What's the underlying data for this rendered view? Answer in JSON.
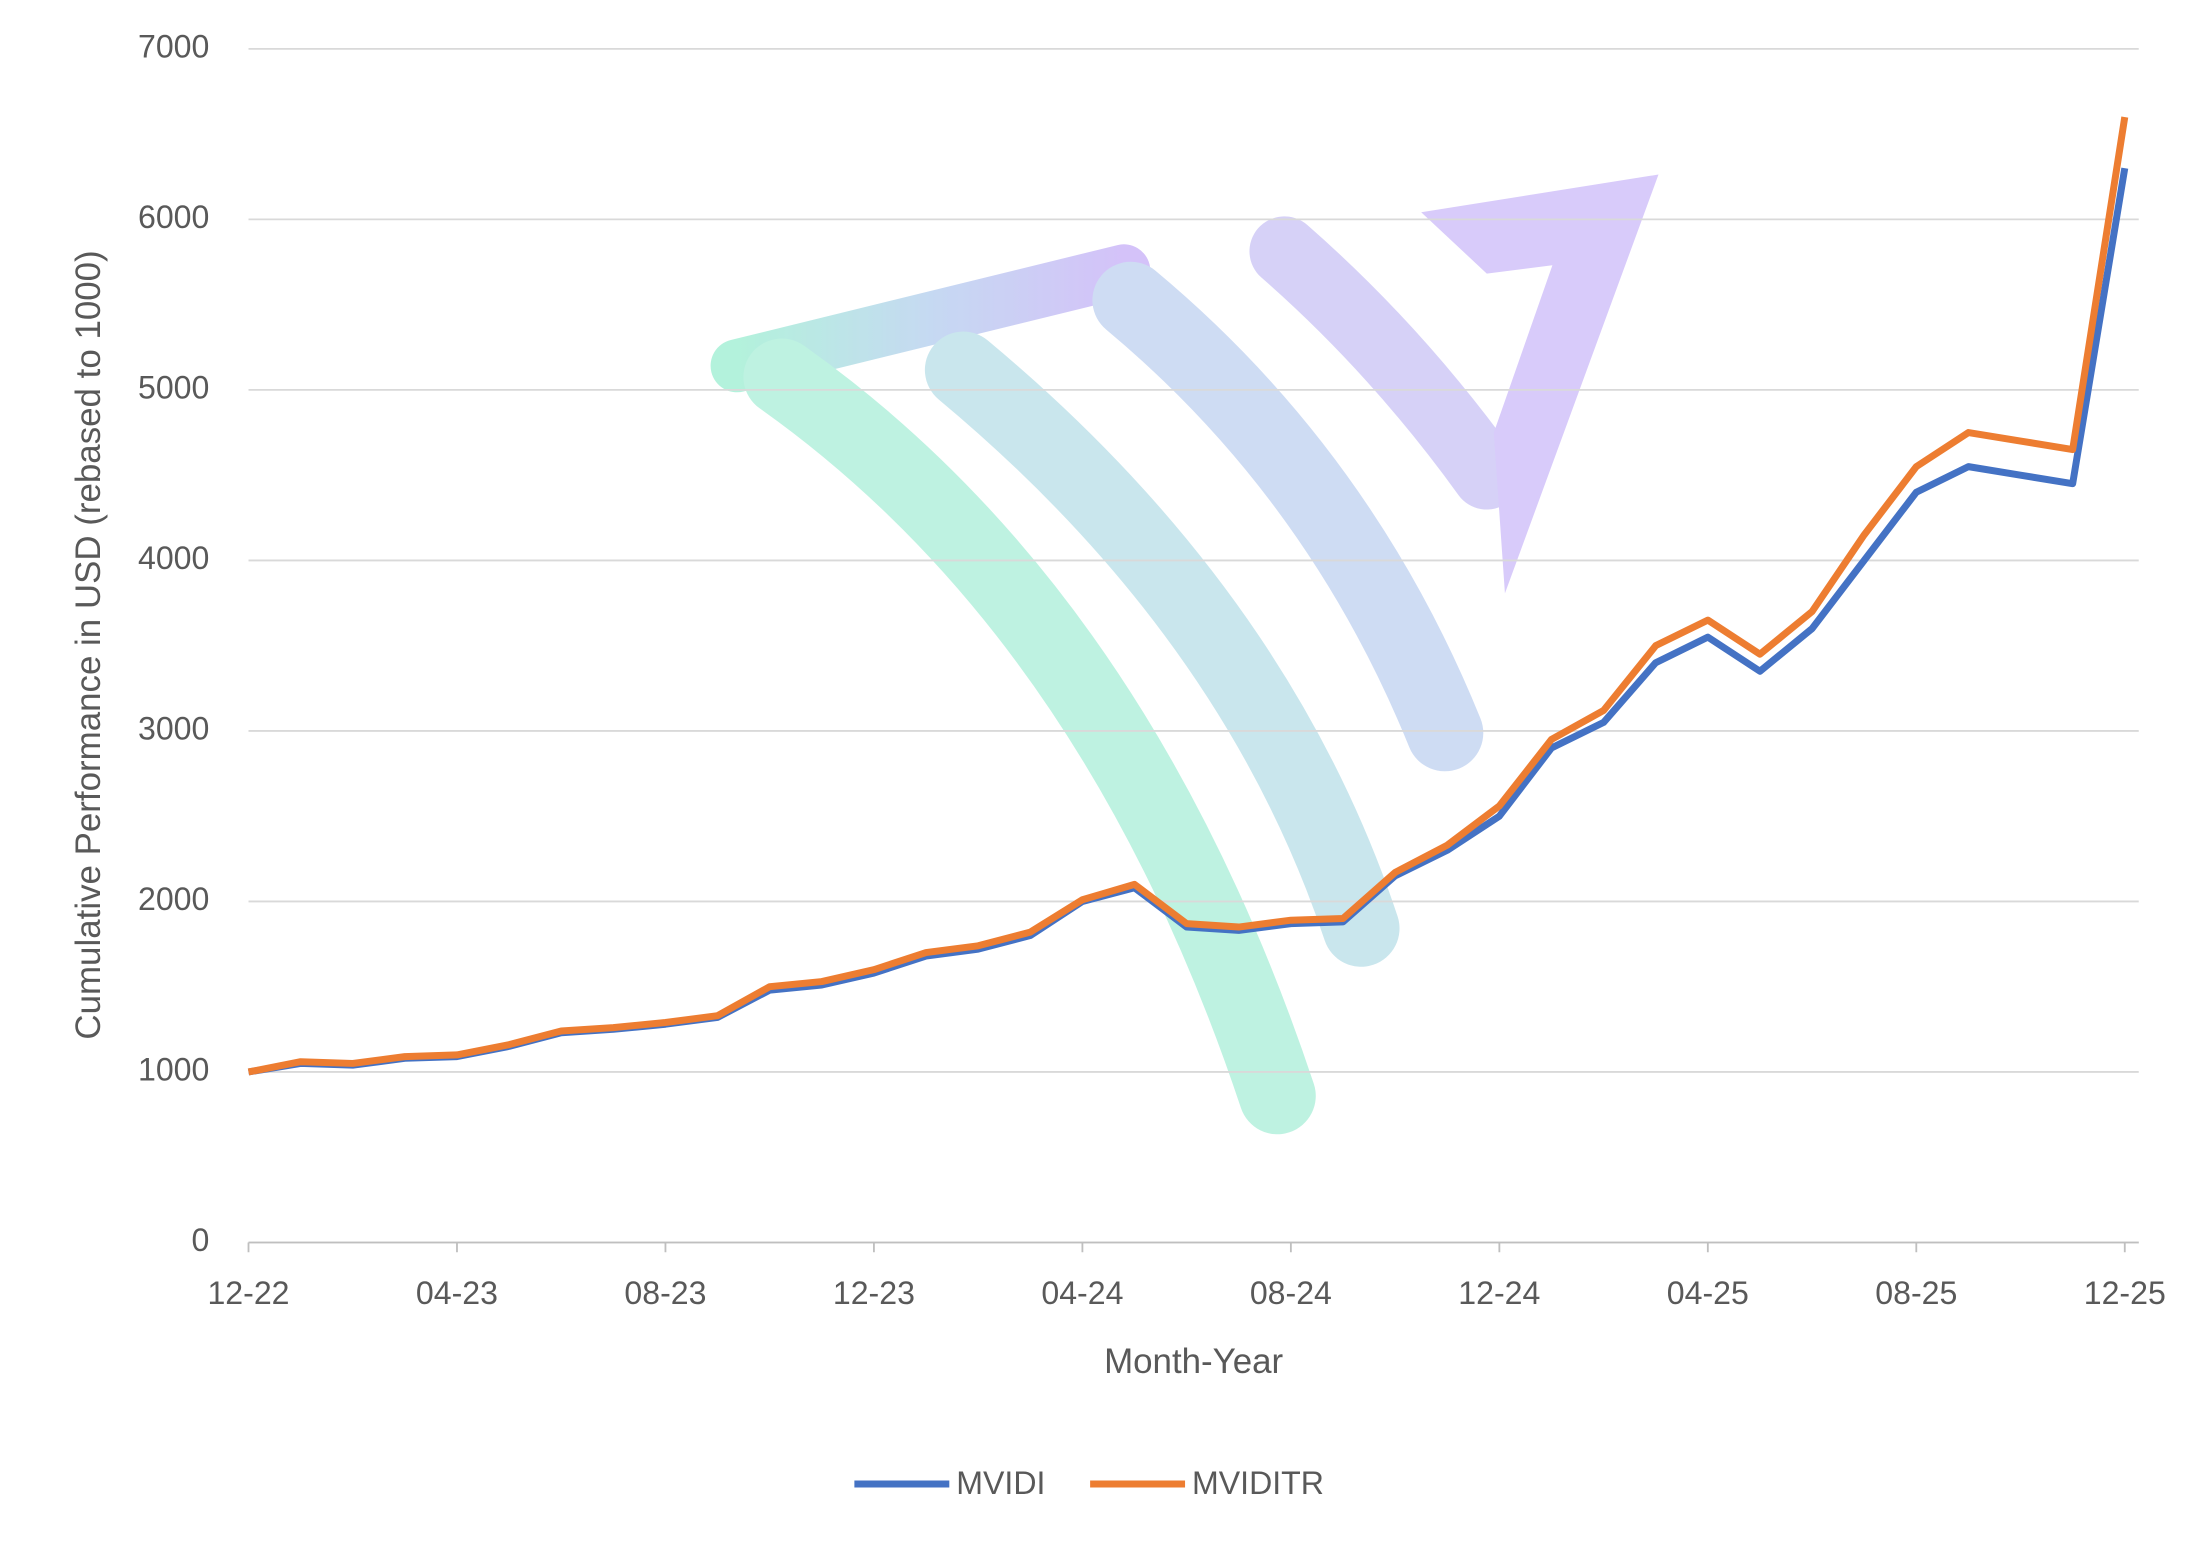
{
  "chart_data": {
    "type": "line",
    "x_label": "Month-Year",
    "y_label": "Cumulative Performance in USD (rebased to 1000)",
    "categories": [
      "12-22",
      null,
      null,
      null,
      "04-23",
      null,
      null,
      null,
      "08-23",
      null,
      null,
      null,
      "12-23",
      null,
      null,
      null,
      "04-24",
      null,
      null,
      null,
      "08-24",
      null,
      null,
      null,
      "12-24",
      null,
      null,
      null,
      "04-25",
      null,
      null,
      null,
      "08-25",
      null,
      null,
      null,
      "12-25"
    ],
    "series": [
      {
        "name": "MVIDI",
        "color": "#4472c4",
        "values": [
          1000,
          1050,
          1040,
          1080,
          1090,
          1150,
          1230,
          1250,
          1280,
          1320,
          1480,
          1510,
          1580,
          1680,
          1720,
          1800,
          2000,
          2080,
          1850,
          1830,
          1870,
          1880,
          2150,
          2300,
          2500,
          2900,
          3050,
          3400,
          3550,
          3350,
          3600,
          4000,
          4400,
          4550,
          4500,
          4450,
          6300
        ]
      },
      {
        "name": "MVIDITR",
        "color": "#ed7d31",
        "values": [
          1000,
          1060,
          1050,
          1090,
          1100,
          1160,
          1240,
          1260,
          1290,
          1330,
          1500,
          1530,
          1600,
          1700,
          1740,
          1820,
          2010,
          2100,
          1870,
          1850,
          1890,
          1900,
          2170,
          2330,
          2560,
          2950,
          3120,
          3500,
          3650,
          3450,
          3700,
          4150,
          4550,
          4750,
          4700,
          4650,
          6600
        ]
      }
    ],
    "ylim": [
      0,
      7000
    ],
    "yticks": [
      0,
      1000,
      2000,
      3000,
      4000,
      5000,
      6000,
      7000
    ],
    "grid": true,
    "legend": "bottom"
  }
}
